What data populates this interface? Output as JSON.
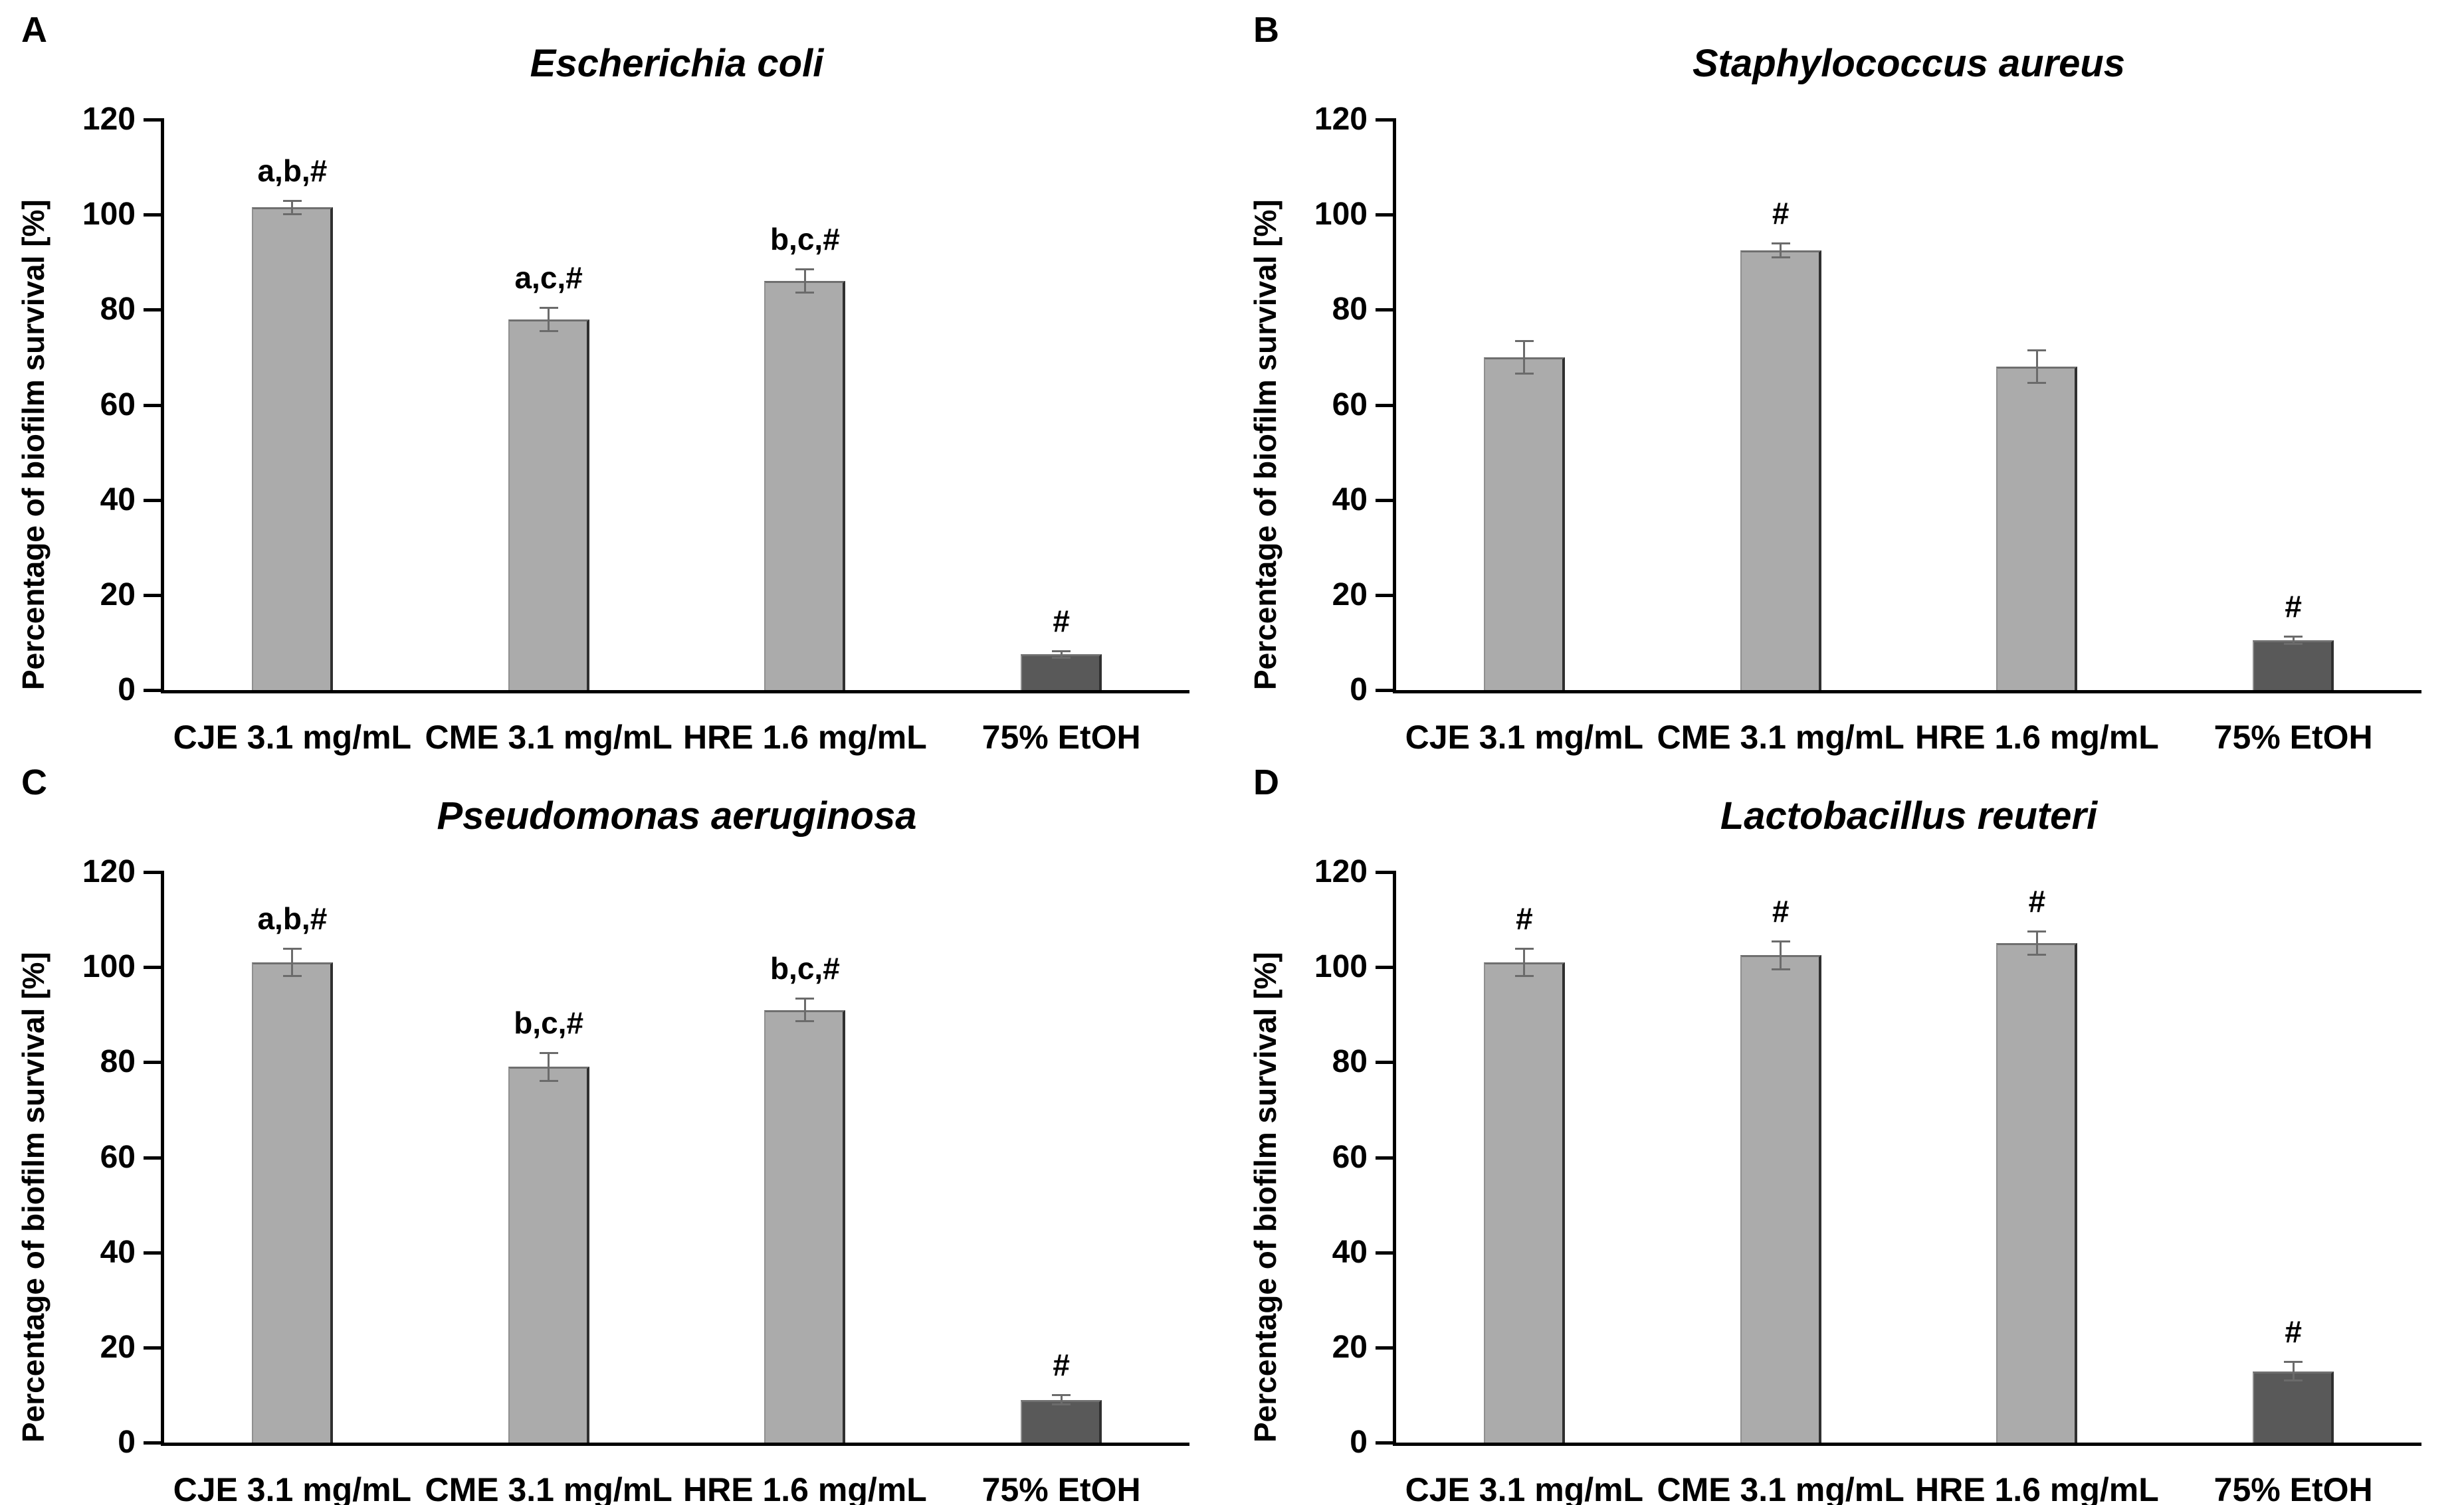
{
  "figure": {
    "background": "#ffffff",
    "y_axis_label": "Percentage of biofilm survival [%]"
  },
  "colors": {
    "bar_light": "#ababab",
    "bar_dark": "#595959",
    "axis": "#000000",
    "error_bar": "#6b6b6b"
  },
  "chart_data": [
    {
      "type": "bar",
      "panel_label": "A",
      "title": "Escherichia coli",
      "ylabel": "Percentage of biofilm survival [%]",
      "ylim": [
        0,
        120
      ],
      "yticks": [
        0,
        20,
        40,
        60,
        80,
        100,
        120
      ],
      "grid": false,
      "categories": [
        "CJE 3.1 mg/mL",
        "CME 3.1 mg/mL",
        "HRE 1.6 mg/mL",
        "75% EtOH"
      ],
      "values": [
        101.5,
        78,
        86,
        7.5
      ],
      "errors": [
        1.5,
        2.5,
        2.5,
        0.8
      ],
      "annotations": [
        "a,b,#",
        "a,c,#",
        "b,c,#",
        "#"
      ],
      "bar_colors": [
        "#ababab",
        "#ababab",
        "#ababab",
        "#595959"
      ]
    },
    {
      "type": "bar",
      "panel_label": "B",
      "title": "Staphylococcus aureus",
      "ylabel": "Percentage of biofilm survival [%]",
      "ylim": [
        0,
        120
      ],
      "yticks": [
        0,
        20,
        40,
        60,
        80,
        100,
        120
      ],
      "grid": false,
      "categories": [
        "CJE 3.1 mg/mL",
        "CME 3.1 mg/mL",
        "HRE 1.6 mg/mL",
        "75% EtOH"
      ],
      "values": [
        70,
        92.5,
        68,
        10.5
      ],
      "errors": [
        3.5,
        1.5,
        3.5,
        0.8
      ],
      "annotations": [
        "",
        "#",
        "",
        "#"
      ],
      "bar_colors": [
        "#ababab",
        "#ababab",
        "#ababab",
        "#595959"
      ]
    },
    {
      "type": "bar",
      "panel_label": "C",
      "title": "Pseudomonas aeruginosa",
      "ylabel": "Percentage of biofilm survival [%]",
      "ylim": [
        0,
        120
      ],
      "yticks": [
        0,
        20,
        40,
        60,
        80,
        100,
        120
      ],
      "grid": false,
      "categories": [
        "CJE 3.1 mg/mL",
        "CME 3.1 mg/mL",
        "HRE 1.6 mg/mL",
        "75% EtOH"
      ],
      "values": [
        101,
        79,
        91,
        9
      ],
      "errors": [
        3,
        3,
        2.5,
        1
      ],
      "annotations": [
        "a,b,#",
        "b,c,#",
        "b,c,#",
        "#"
      ],
      "bar_colors": [
        "#ababab",
        "#ababab",
        "#ababab",
        "#595959"
      ]
    },
    {
      "type": "bar",
      "panel_label": "D",
      "title": "Lactobacillus reuteri",
      "ylabel": "Percentage of biofilm survival [%]",
      "ylim": [
        0,
        120
      ],
      "yticks": [
        0,
        20,
        40,
        60,
        80,
        100,
        120
      ],
      "grid": false,
      "categories": [
        "CJE 3.1 mg/mL",
        "CME 3.1 mg/mL",
        "HRE 1.6 mg/mL",
        "75% EtOH"
      ],
      "values": [
        101,
        102.5,
        105,
        15
      ],
      "errors": [
        3,
        3,
        2.5,
        2
      ],
      "annotations": [
        "#",
        "#",
        "#",
        "#"
      ],
      "bar_colors": [
        "#ababab",
        "#ababab",
        "#ababab",
        "#595959"
      ]
    }
  ]
}
